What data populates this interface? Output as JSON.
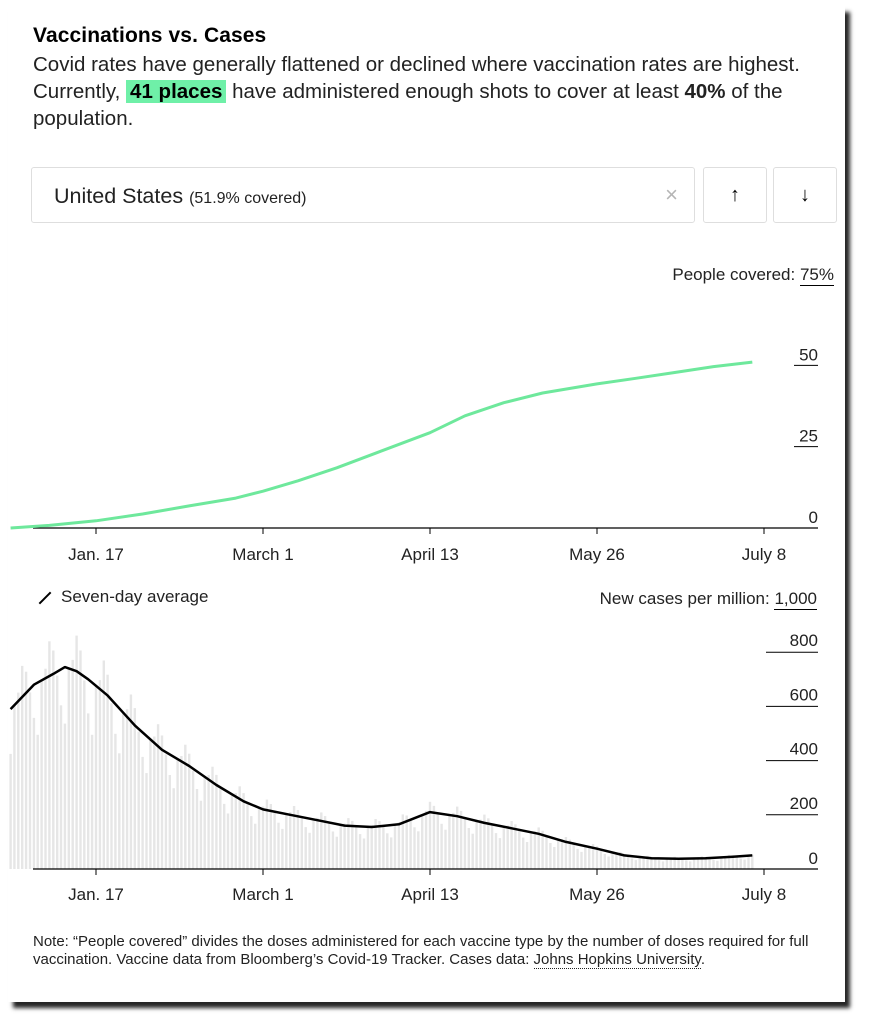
{
  "header": {
    "title": "Vaccinations vs. Cases",
    "subtitle_pre": "Covid rates have generally flattened or declined where vaccination rates are highest. Currently,",
    "highlight": "41 places",
    "subtitle_mid": "have administered enough shots to cover at least",
    "bold_pct": "40%",
    "subtitle_post": "of the population."
  },
  "selector": {
    "location": "United States",
    "coverage": "(51.9% covered)",
    "clear_glyph": "×",
    "up_glyph": "↑",
    "down_glyph": "↓"
  },
  "legend": {
    "seven_day": "Seven-day average"
  },
  "note": {
    "text": "Note: “People covered” divides the doses administered for each vaccine type by the number of doses required for full vaccination. Vaccine data from Bloomberg’s Covid-19 Tracker. Cases data:",
    "link": "Johns Hopkins University",
    "end": "."
  },
  "colors": {
    "vaccine_line": "#6ee89c",
    "case_bars": "#e6e6e6",
    "average_line": "#000000",
    "highlight": "#6ff0a8"
  },
  "chart_data": [
    {
      "type": "line",
      "ylabel": "People covered:",
      "ymax_label": "75%",
      "ylim": [
        0,
        75
      ],
      "yticks": [
        0,
        25,
        50
      ],
      "xticks": [
        "Jan. 17",
        "March 1",
        "April 13",
        "May 26",
        "July 8"
      ],
      "x": [
        "Dec. 26",
        "Jan. 5",
        "Jan. 17",
        "Jan. 29",
        "Feb. 10",
        "Feb. 22",
        "March 1",
        "March 10",
        "March 20",
        "March 30",
        "April 13",
        "April 22",
        "May 2",
        "May 12",
        "May 26",
        "June 5",
        "June 15",
        "June 25",
        "July 5"
      ],
      "values": [
        0,
        0.8,
        2.2,
        4.3,
        6.8,
        9.2,
        11.3,
        14.5,
        18.5,
        23,
        29.3,
        34.5,
        38.5,
        41.5,
        44.3,
        46,
        47.8,
        49.6,
        51.0
      ]
    },
    {
      "type": "bar",
      "ylabel": "New cases per million:",
      "ymax_label": "1,000",
      "ylim": [
        0,
        1000
      ],
      "yticks": [
        0,
        200,
        400,
        600,
        800
      ],
      "xticks": [
        "Jan. 17",
        "March 1",
        "April 13",
        "May 26",
        "July 8"
      ],
      "series": [
        {
          "name": "Seven-day average",
          "x": [
            "Dec. 26",
            "Jan. 1",
            "Jan. 6",
            "Jan. 9",
            "Jan. 12",
            "Jan. 15",
            "Jan. 20",
            "Jan. 27",
            "Feb. 3",
            "Feb. 10",
            "Feb. 17",
            "Feb. 24",
            "March 1",
            "March 8",
            "March 15",
            "March 22",
            "March 29",
            "April 5",
            "April 13",
            "April 20",
            "April 27",
            "May 4",
            "May 11",
            "May 18",
            "May 26",
            "June 2",
            "June 9",
            "June 16",
            "June 23",
            "June 30",
            "July 5"
          ],
          "values": [
            590,
            680,
            720,
            745,
            730,
            700,
            640,
            530,
            440,
            380,
            310,
            250,
            220,
            200,
            180,
            160,
            155,
            165,
            210,
            195,
            170,
            150,
            130,
            100,
            75,
            50,
            40,
            38,
            40,
            45,
            50
          ]
        }
      ]
    }
  ]
}
